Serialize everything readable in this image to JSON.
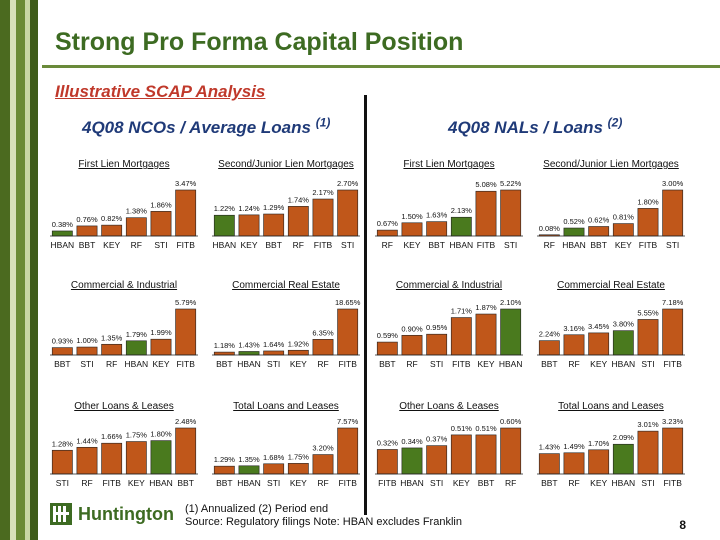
{
  "slide": {
    "title": "Strong Pro Forma Capital Position",
    "subtitle": "Illustrative SCAP Analysis",
    "left_header": "4Q08 NCOs / Average Loans",
    "left_header_sup": "(1)",
    "right_header": "4Q08 NALs / Loans",
    "right_header_sup": "(2)",
    "footnote_line1": "(1)  Annualized    (2)  Period end",
    "footnote_line2": "Source: Regulatory filings       Note: HBAN excludes Franklin",
    "page_number": "8",
    "logo_text": "Huntington",
    "logo_icon": "huntington-logo-icon"
  },
  "colors": {
    "bar": "#c0571a",
    "hban_bar": "#4a7a1e",
    "title": "#3d6b22",
    "subtitle": "#c0392b",
    "header": "#1f3a78",
    "stripe_dark": "#4b6a1f",
    "stripe_light": "#d8e0b8"
  },
  "chart_data": [
    {
      "type": "bar",
      "title": "First Lien Mortgages",
      "categories": [
        "HBAN",
        "BBT",
        "KEY",
        "RF",
        "STI",
        "FITB"
      ],
      "values": [
        0.38,
        0.76,
        0.82,
        1.38,
        1.86,
        3.47
      ],
      "labels": [
        "0.38%",
        "0.76%",
        "0.82%",
        "1.38%",
        "1.86%",
        "3.47%"
      ]
    },
    {
      "type": "bar",
      "title": "Second/Junior Lien Mortgages",
      "categories": [
        "HBAN",
        "KEY",
        "BBT",
        "RF",
        "FITB",
        "STI"
      ],
      "values": [
        1.22,
        1.24,
        1.29,
        1.74,
        2.17,
        2.7
      ],
      "labels": [
        "1.22%",
        "1.24%",
        "1.29%",
        "1.74%",
        "2.17%",
        "2.70%"
      ]
    },
    {
      "type": "bar",
      "title": "First Lien Mortgages",
      "categories": [
        "RF",
        "KEY",
        "BBT",
        "HBAN",
        "FITB",
        "STI"
      ],
      "values": [
        0.67,
        1.5,
        1.63,
        2.13,
        5.08,
        5.22
      ],
      "labels": [
        "0.67%",
        "1.50%",
        "1.63%",
        "2.13%",
        "5.08%",
        "5.22%"
      ]
    },
    {
      "type": "bar",
      "title": "Second/Junior Lien Mortgages",
      "categories": [
        "RF",
        "HBAN",
        "BBT",
        "KEY",
        "FITB",
        "STI"
      ],
      "values": [
        0.08,
        0.52,
        0.62,
        0.81,
        1.8,
        3.0
      ],
      "labels": [
        "0.08%",
        "0.52%",
        "0.62%",
        "0.81%",
        "1.80%",
        "3.00%"
      ]
    },
    {
      "type": "bar",
      "title": "Commercial & Industrial",
      "categories": [
        "BBT",
        "STI",
        "RF",
        "HBAN",
        "KEY",
        "FITB"
      ],
      "values": [
        0.93,
        1.0,
        1.35,
        1.79,
        1.99,
        5.79
      ],
      "labels": [
        "0.93%",
        "1.00%",
        "1.35%",
        "1.79%",
        "1.99%",
        "5.79%"
      ]
    },
    {
      "type": "bar",
      "title": "Commercial Real Estate",
      "categories": [
        "BBT",
        "HBAN",
        "STI",
        "KEY",
        "RF",
        "FITB"
      ],
      "values": [
        1.18,
        1.43,
        1.64,
        1.92,
        6.35,
        18.65
      ],
      "labels": [
        "1.18%",
        "1.43%",
        "1.64%",
        "1.92%",
        "6.35%",
        "18.65%"
      ]
    },
    {
      "type": "bar",
      "title": "Commercial & Industrial",
      "categories": [
        "BBT",
        "RF",
        "STI",
        "FITB",
        "KEY",
        "HBAN"
      ],
      "values": [
        0.59,
        0.9,
        0.95,
        1.71,
        1.87,
        2.1
      ],
      "labels": [
        "0.59%",
        "0.90%",
        "0.95%",
        "1.71%",
        "1.87%",
        "2.10%"
      ]
    },
    {
      "type": "bar",
      "title": "Commercial Real Estate",
      "categories": [
        "BBT",
        "RF",
        "KEY",
        "HBAN",
        "STI",
        "FITB"
      ],
      "values": [
        2.24,
        3.16,
        3.45,
        3.8,
        5.55,
        7.18
      ],
      "labels": [
        "2.24%",
        "3.16%",
        "3.45%",
        "3.80%",
        "5.55%",
        "7.18%"
      ]
    },
    {
      "type": "bar",
      "title": "Other Loans & Leases",
      "categories": [
        "STI",
        "RF",
        "FITB",
        "KEY",
        "HBAN",
        "BBT"
      ],
      "values": [
        1.28,
        1.44,
        1.66,
        1.75,
        1.8,
        2.48
      ],
      "labels": [
        "1.28%",
        "1.44%",
        "1.66%",
        "1.75%",
        "1.80%",
        "2.48%"
      ]
    },
    {
      "type": "bar",
      "title": "Total Loans and Leases",
      "categories": [
        "BBT",
        "HBAN",
        "STI",
        "KEY",
        "RF",
        "FITB"
      ],
      "values": [
        1.29,
        1.35,
        1.68,
        1.75,
        3.2,
        7.57
      ],
      "labels": [
        "1.29%",
        "1.35%",
        "1.68%",
        "1.75%",
        "3.20%",
        "7.57%"
      ]
    },
    {
      "type": "bar",
      "title": "Other Loans & Leases",
      "categories": [
        "FITB",
        "HBAN",
        "STI",
        "KEY",
        "BBT",
        "RF"
      ],
      "values": [
        0.32,
        0.34,
        0.37,
        0.51,
        0.51,
        0.6
      ],
      "labels": [
        "0.32%",
        "0.34%",
        "0.37%",
        "0.51%",
        "0.51%",
        "0.60%"
      ]
    },
    {
      "type": "bar",
      "title": "Total Loans and Leases",
      "categories": [
        "BBT",
        "RF",
        "KEY",
        "HBAN",
        "STI",
        "FITB"
      ],
      "values": [
        1.43,
        1.49,
        1.7,
        2.09,
        3.01,
        3.23
      ],
      "labels": [
        "1.43%",
        "1.49%",
        "1.70%",
        "2.09%",
        "3.01%",
        "3.23%"
      ]
    }
  ]
}
